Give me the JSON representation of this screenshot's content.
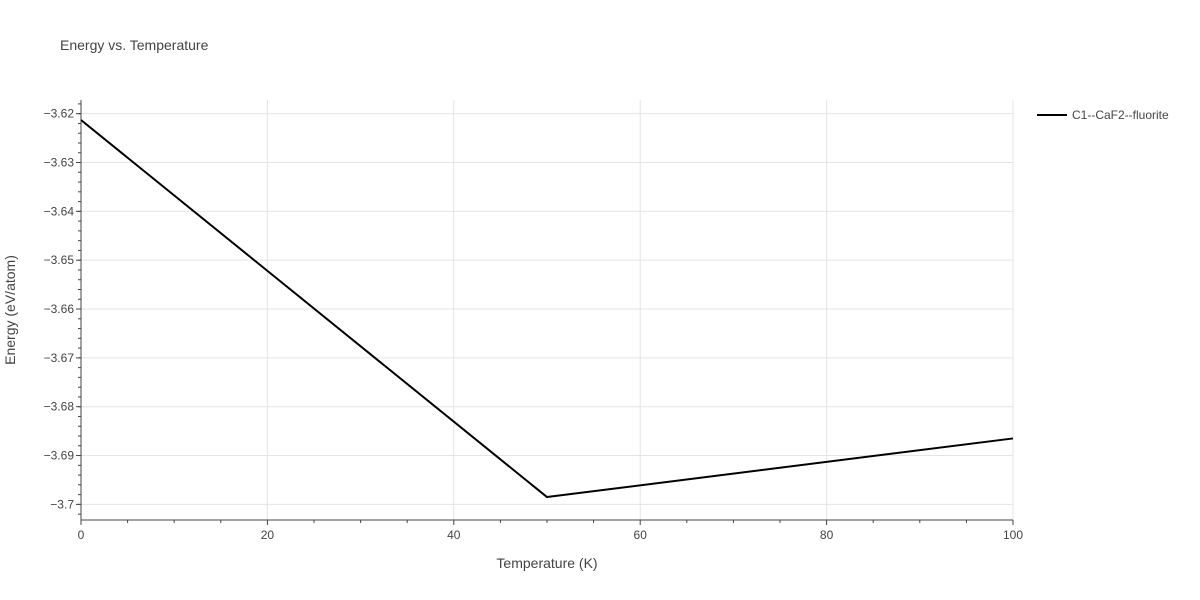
{
  "chart_data": {
    "type": "line",
    "title": "Energy vs. Temperature",
    "xlabel": "Temperature (K)",
    "ylabel": "Energy (eV/atom)",
    "xlim": [
      0,
      100
    ],
    "ylim": [
      -3.7032,
      -3.6172
    ],
    "x_ticks": [
      0,
      20,
      40,
      60,
      80,
      100
    ],
    "x_tick_labels": [
      "0",
      "20",
      "40",
      "60",
      "80",
      "100"
    ],
    "y_ticks": [
      -3.62,
      -3.63,
      -3.64,
      -3.65,
      -3.66,
      -3.67,
      -3.68,
      -3.69,
      -3.7
    ],
    "y_tick_labels": [
      "−3.62",
      "−3.63",
      "−3.64",
      "−3.65",
      "−3.66",
      "−3.67",
      "−3.68",
      "−3.69",
      "−3.7"
    ],
    "grid": true,
    "legend_position": "top-right, outside plot",
    "series": [
      {
        "name": "C1--CaF2--fluorite",
        "color": "#000000",
        "x": [
          0,
          50,
          100
        ],
        "y": [
          -3.6213,
          -3.6985,
          -3.6865
        ]
      }
    ]
  }
}
